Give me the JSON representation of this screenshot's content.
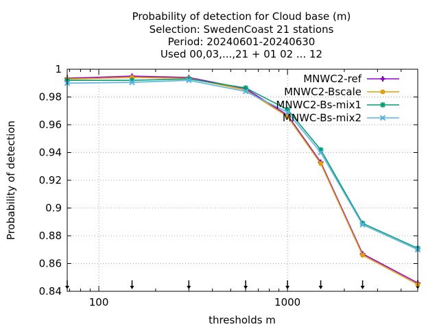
{
  "chart_data": {
    "type": "line",
    "title_lines": [
      "Probability of detection  for Cloud base (m)",
      "Selection: SwedenCoast     21 stations",
      "Period: 20240601-20240630",
      "Used 00,03,...,21 + 01 02 ... 12"
    ],
    "xlabel": "thresholds m",
    "ylabel": "Probability of detection",
    "x_scale": "log",
    "xlim": [
      68,
      4900
    ],
    "ylim": [
      0.84,
      1.0
    ],
    "x_ticks": [
      100,
      1000
    ],
    "y_ticks": [
      0.84,
      0.86,
      0.88,
      0.9,
      0.92,
      0.94,
      0.96,
      0.98,
      1
    ],
    "y_tick_labels": [
      "0.84",
      "0.86",
      "0.88",
      "0.9",
      "0.92",
      "0.94",
      "0.96",
      "0.98",
      "1"
    ],
    "x_tick_labels": [
      "100",
      "1000"
    ],
    "grid": true,
    "legend_position": "top-right",
    "threshold_markers": [
      68,
      150,
      300,
      600,
      1000,
      1500,
      2500,
      4900
    ],
    "x": [
      68,
      150,
      300,
      600,
      1000,
      1500,
      2500,
      4900
    ],
    "series": [
      {
        "name": "MNWC2-ref",
        "color": "#9400d3",
        "marker": "plus",
        "values": [
          0.9935,
          0.995,
          0.994,
          0.986,
          0.967,
          0.933,
          0.867,
          0.846
        ]
      },
      {
        "name": "MNWC2-Bscale",
        "color": "#e69f00",
        "marker": "filled-circle",
        "values": [
          0.993,
          0.994,
          0.9935,
          0.985,
          0.966,
          0.932,
          0.866,
          0.845
        ]
      },
      {
        "name": "MNWC2-Bs-mix1",
        "color": "#009e73",
        "marker": "star",
        "values": [
          0.992,
          0.992,
          0.993,
          0.9865,
          0.971,
          0.942,
          0.889,
          0.871
        ]
      },
      {
        "name": "MNWC-Bs-mix2",
        "color": "#56b4e9",
        "marker": "x",
        "values": [
          0.99,
          0.9905,
          0.992,
          0.984,
          0.969,
          0.94,
          0.888,
          0.87
        ]
      }
    ]
  }
}
